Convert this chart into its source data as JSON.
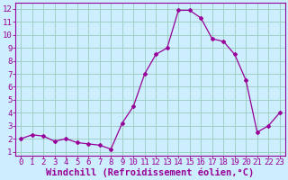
{
  "x": [
    0,
    1,
    2,
    3,
    4,
    5,
    6,
    7,
    8,
    9,
    10,
    11,
    12,
    13,
    14,
    15,
    16,
    17,
    18,
    19,
    20,
    21,
    22,
    23
  ],
  "y": [
    2.0,
    2.3,
    2.2,
    1.8,
    2.0,
    1.7,
    1.6,
    1.5,
    1.2,
    3.2,
    4.5,
    7.0,
    8.5,
    9.0,
    11.9,
    11.9,
    11.3,
    9.7,
    9.5,
    8.5,
    6.5,
    2.5,
    3.0,
    4.0
  ],
  "line_color": "#990099",
  "marker": "D",
  "marker_size": 2.0,
  "bg_color": "#cceeff",
  "grid_color": "#99ccbb",
  "xlabel": "Windchill (Refroidissement éolien,°C)",
  "xlabel_color": "#990099",
  "xlabel_fontsize": 7.5,
  "tick_color": "#990099",
  "tick_fontsize": 6.5,
  "xlim": [
    -0.5,
    23.5
  ],
  "ylim": [
    0.7,
    12.5
  ],
  "yticks": [
    1,
    2,
    3,
    4,
    5,
    6,
    7,
    8,
    9,
    10,
    11,
    12
  ],
  "xticks": [
    0,
    1,
    2,
    3,
    4,
    5,
    6,
    7,
    8,
    9,
    10,
    11,
    12,
    13,
    14,
    15,
    16,
    17,
    18,
    19,
    20,
    21,
    22,
    23
  ]
}
